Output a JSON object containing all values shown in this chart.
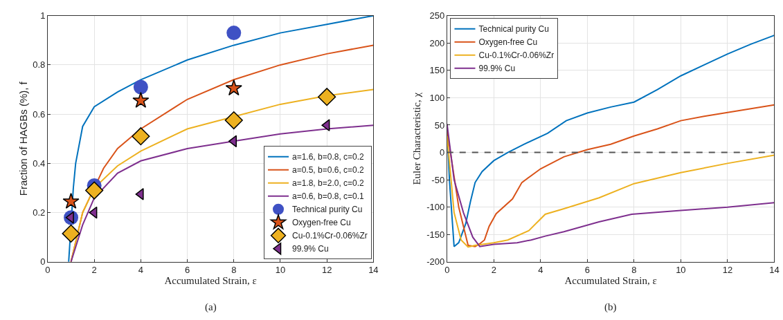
{
  "chart_data": [
    {
      "type": "line",
      "xlabel": "Accumulated Strain, ε",
      "ylabel": "Fraction of HAGBs (%), f",
      "xlim": [
        0,
        14
      ],
      "xticks": [
        0,
        2,
        4,
        6,
        8,
        10,
        12,
        14
      ],
      "ylim": [
        0,
        1
      ],
      "yticks": [
        0,
        0.2,
        0.4,
        0.6,
        0.8,
        1
      ],
      "grid": true,
      "legend": "bottom right",
      "annotations": [
        "(a)"
      ],
      "series": [
        {
          "name": "a=1.6, b=0.8, c=0.2",
          "color": "#0072bd",
          "x": [
            0.9,
            1.1,
            1.2,
            1.5,
            2,
            3,
            4,
            6,
            8,
            10,
            12,
            14
          ],
          "values": [
            0,
            0.3,
            0.4,
            0.55,
            0.63,
            0.69,
            0.74,
            0.82,
            0.88,
            0.93,
            0.965,
            1.0
          ]
        },
        {
          "name": "a=0.5, b=0.6, c=0.2",
          "color": "#d95319",
          "x": [
            1,
            1.5,
            2.4,
            3,
            4,
            6,
            8,
            10,
            12,
            14
          ],
          "values": [
            0,
            0.2,
            0.38,
            0.46,
            0.54,
            0.66,
            0.74,
            0.8,
            0.845,
            0.88
          ]
        },
        {
          "name": "a=1.8, b=2.0, c=0.2",
          "color": "#edb120",
          "x": [
            1,
            1.5,
            2,
            3,
            4,
            6,
            8,
            10,
            12,
            14
          ],
          "values": [
            0,
            0.2,
            0.3,
            0.39,
            0.45,
            0.54,
            0.59,
            0.64,
            0.675,
            0.7
          ]
        },
        {
          "name": "a=0.6, b=0.8, c=0.1",
          "color": "#7e2f8e",
          "x": [
            1,
            1.5,
            2,
            3,
            4,
            6,
            8,
            10,
            12,
            14
          ],
          "values": [
            0,
            0.15,
            0.26,
            0.36,
            0.41,
            0.46,
            0.49,
            0.52,
            0.54,
            0.555
          ]
        },
        {
          "name": "Technical purity Cu",
          "type": "scatter",
          "marker": "circle",
          "color": "#3f51c4",
          "x": [
            1,
            2,
            4,
            8
          ],
          "values": [
            0.18,
            0.31,
            0.71,
            0.93
          ]
        },
        {
          "name": "Oxygen-free Cu",
          "type": "scatter",
          "marker": "star",
          "color": "#d95319",
          "x": [
            1,
            4,
            8
          ],
          "values": [
            0.245,
            0.655,
            0.705
          ]
        },
        {
          "name": "Cu-0.1%Cr-0.06%Zr",
          "type": "scatter",
          "marker": "diamond",
          "color": "#edb120",
          "x": [
            1,
            2,
            4,
            8,
            12
          ],
          "values": [
            0.115,
            0.29,
            0.51,
            0.575,
            0.67
          ]
        },
        {
          "name": "99.9% Cu",
          "type": "scatter",
          "marker": "triangle",
          "color": "#7e2f8e",
          "x": [
            1,
            2,
            4,
            8,
            12
          ],
          "values": [
            0.18,
            0.2,
            0.275,
            0.49,
            0.555
          ]
        }
      ]
    },
    {
      "type": "line",
      "xlabel": "Accumulated Strain, ε",
      "ylabel": "Euler Characteristic, χ",
      "xlim": [
        0,
        14
      ],
      "xticks": [
        0,
        2,
        4,
        6,
        8,
        10,
        12,
        14
      ],
      "ylim": [
        -200,
        250
      ],
      "yticks": [
        -200,
        -150,
        -100,
        -50,
        0,
        50,
        100,
        150,
        200,
        250
      ],
      "grid": true,
      "legend": "top left",
      "annotations": [
        "(b)"
      ],
      "ref_lines": [
        {
          "axis": "y",
          "value": 0,
          "color": "#555555",
          "line_style": "dashed"
        }
      ],
      "series": [
        {
          "name": "Technical purity Cu",
          "color": "#0072bd",
          "x": [
            0,
            0.1,
            0.3,
            0.5,
            0.8,
            1.0,
            1.2,
            1.5,
            2,
            2.6,
            3.3,
            4.3,
            5.1,
            6,
            7,
            8,
            9,
            10,
            11,
            12,
            13,
            14
          ],
          "values": [
            50,
            -50,
            -172,
            -165,
            -130,
            -90,
            -55,
            -35,
            -15,
            0,
            15,
            35,
            58,
            72,
            83,
            92,
            115,
            140,
            160,
            180,
            198,
            214
          ]
        },
        {
          "name": "Oxygen-free Cu",
          "color": "#d95319",
          "x": [
            0,
            0.5,
            0.9,
            1.2,
            1.4,
            1.6,
            1.8,
            2.1,
            2.8,
            3.2,
            4,
            5,
            6,
            7,
            8,
            9,
            10,
            11,
            12,
            13,
            14
          ],
          "values": [
            40,
            -100,
            -170,
            -172,
            -167,
            -160,
            -135,
            -112,
            -85,
            -55,
            -30,
            -8,
            5,
            15,
            30,
            43,
            58,
            66,
            73,
            80,
            87
          ]
        },
        {
          "name": "Cu-0.1%Cr-0.06%Zr",
          "color": "#edb120",
          "x": [
            0,
            0.3,
            0.6,
            0.9,
            1.2,
            2,
            2.6,
            3.5,
            4.2,
            5,
            6.5,
            8,
            10,
            12,
            14
          ],
          "values": [
            30,
            -110,
            -160,
            -173,
            -170,
            -165,
            -160,
            -143,
            -113,
            -103,
            -83,
            -57,
            -37,
            -20,
            -5
          ]
        },
        {
          "name": "99.9% Cu",
          "color": "#7e2f8e",
          "x": [
            0,
            0.3,
            0.7,
            1.1,
            1.4,
            2,
            3,
            3.6,
            4.2,
            5,
            6.5,
            7.9,
            10,
            12,
            14
          ],
          "values": [
            52,
            -50,
            -110,
            -155,
            -172,
            -168,
            -165,
            -160,
            -153,
            -145,
            -127,
            -113,
            -106,
            -100,
            -92
          ]
        }
      ]
    }
  ]
}
